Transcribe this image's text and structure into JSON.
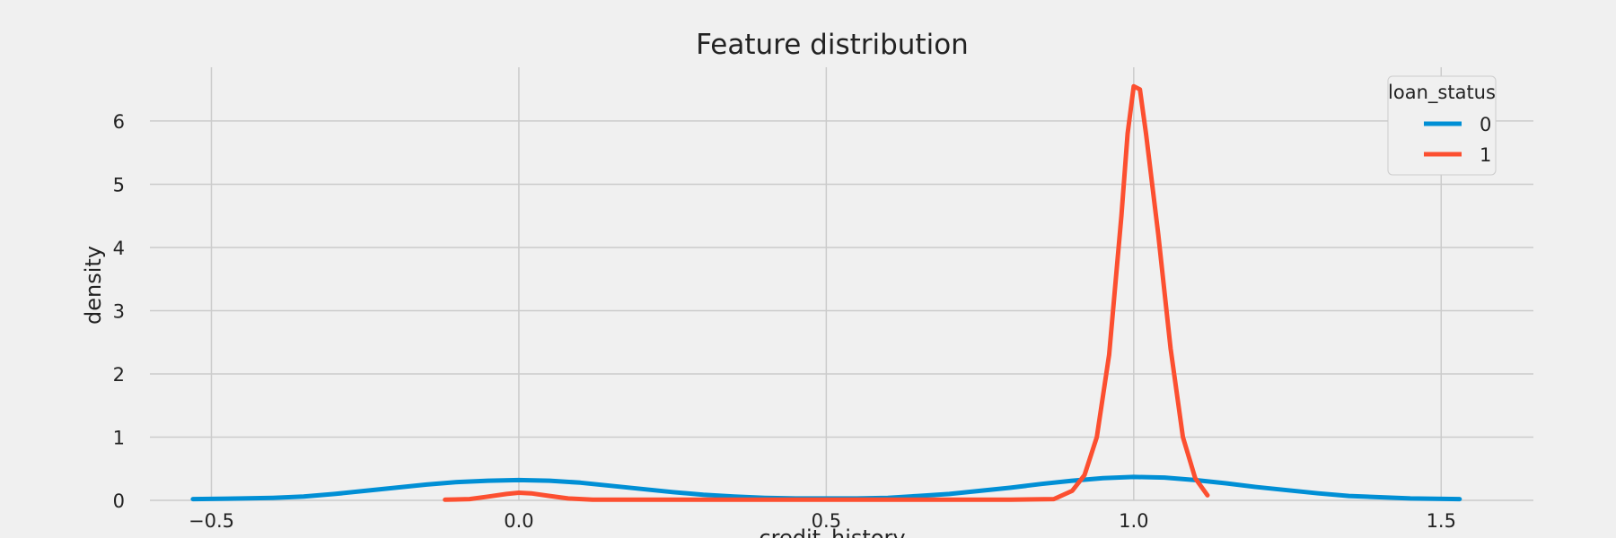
{
  "chart_data": {
    "type": "line",
    "title": "Feature distribution",
    "xlabel": "credit_history",
    "ylabel": "density",
    "xlim": [
      -0.6,
      1.65
    ],
    "ylim": [
      0,
      6.85
    ],
    "xticks": [
      -0.5,
      0.0,
      0.5,
      1.0,
      1.5
    ],
    "xtick_labels": [
      "−0.5",
      "0.0",
      "0.5",
      "1.0",
      "1.5"
    ],
    "yticks": [
      0,
      1,
      2,
      3,
      4,
      5,
      6
    ],
    "ytick_labels": [
      "0",
      "1",
      "2",
      "3",
      "4",
      "5",
      "6"
    ],
    "grid": true,
    "legend": {
      "title": "loan_status",
      "position": "top-right"
    },
    "series": [
      {
        "name": "0",
        "color": "#008fd5",
        "points": [
          [
            -0.53,
            0.02
          ],
          [
            -0.45,
            0.03
          ],
          [
            -0.4,
            0.04
          ],
          [
            -0.35,
            0.06
          ],
          [
            -0.3,
            0.1
          ],
          [
            -0.25,
            0.15
          ],
          [
            -0.2,
            0.2
          ],
          [
            -0.15,
            0.25
          ],
          [
            -0.1,
            0.29
          ],
          [
            -0.05,
            0.31
          ],
          [
            0.0,
            0.32
          ],
          [
            0.05,
            0.31
          ],
          [
            0.1,
            0.28
          ],
          [
            0.15,
            0.23
          ],
          [
            0.2,
            0.18
          ],
          [
            0.25,
            0.13
          ],
          [
            0.3,
            0.09
          ],
          [
            0.35,
            0.06
          ],
          [
            0.4,
            0.04
          ],
          [
            0.45,
            0.03
          ],
          [
            0.5,
            0.03
          ],
          [
            0.55,
            0.03
          ],
          [
            0.6,
            0.04
          ],
          [
            0.65,
            0.07
          ],
          [
            0.7,
            0.1
          ],
          [
            0.75,
            0.15
          ],
          [
            0.8,
            0.2
          ],
          [
            0.85,
            0.26
          ],
          [
            0.9,
            0.31
          ],
          [
            0.95,
            0.35
          ],
          [
            1.0,
            0.37
          ],
          [
            1.05,
            0.36
          ],
          [
            1.1,
            0.32
          ],
          [
            1.15,
            0.27
          ],
          [
            1.2,
            0.21
          ],
          [
            1.25,
            0.16
          ],
          [
            1.3,
            0.11
          ],
          [
            1.35,
            0.07
          ],
          [
            1.4,
            0.05
          ],
          [
            1.45,
            0.03
          ],
          [
            1.53,
            0.02
          ]
        ]
      },
      {
        "name": "1",
        "color": "#fc4f30",
        "points": [
          [
            -0.12,
            0.01
          ],
          [
            -0.08,
            0.02
          ],
          [
            -0.05,
            0.06
          ],
          [
            -0.02,
            0.1
          ],
          [
            0.0,
            0.12
          ],
          [
            0.02,
            0.11
          ],
          [
            0.05,
            0.07
          ],
          [
            0.08,
            0.03
          ],
          [
            0.12,
            0.01
          ],
          [
            0.2,
            0.01
          ],
          [
            0.5,
            0.01
          ],
          [
            0.8,
            0.01
          ],
          [
            0.87,
            0.02
          ],
          [
            0.9,
            0.15
          ],
          [
            0.92,
            0.4
          ],
          [
            0.94,
            1.0
          ],
          [
            0.96,
            2.3
          ],
          [
            0.98,
            4.5
          ],
          [
            0.99,
            5.8
          ],
          [
            1.0,
            6.55
          ],
          [
            1.01,
            6.5
          ],
          [
            1.02,
            5.8
          ],
          [
            1.04,
            4.2
          ],
          [
            1.06,
            2.4
          ],
          [
            1.08,
            1.0
          ],
          [
            1.1,
            0.35
          ],
          [
            1.12,
            0.08
          ]
        ]
      }
    ]
  }
}
